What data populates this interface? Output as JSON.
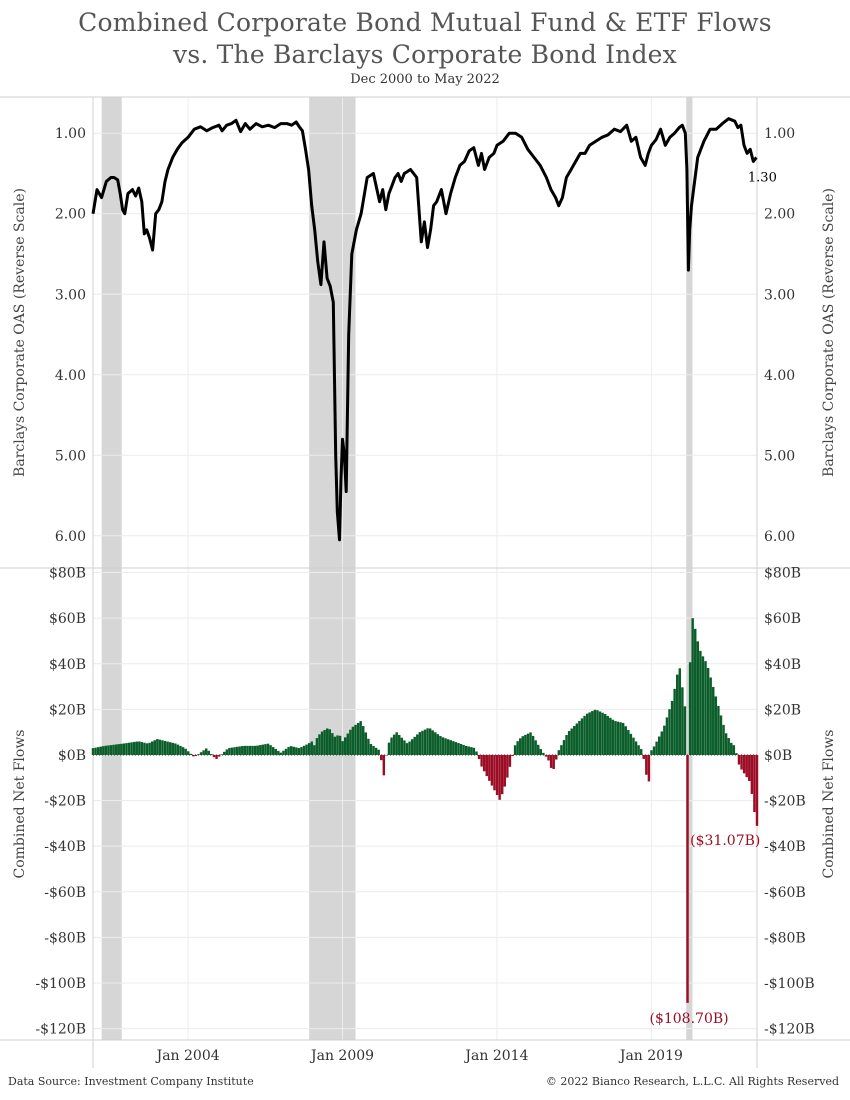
{
  "title_line1": "Combined Corporate Bond Mutual Fund & ETF Flows",
  "title_line2": "vs. The Barclays Corporate Bond Index",
  "subtitle": "Dec 2000 to May 2022",
  "footer": {
    "source": "Data Source: Investment Company Institute",
    "copyright": "© 2022 Bianco Research, L.L.C. All Rights Reserved"
  },
  "colors": {
    "line": "#000000",
    "positive_bar": "#0b5e2a",
    "negative_bar": "#9b0d24",
    "recession_band": "#d6d6d6",
    "grid": "#ececec"
  },
  "chart_data": [
    {
      "type": "line",
      "ylabel": "Barclays Corporate OAS (Reverse Scale)",
      "y_reversed": true,
      "ylim": [
        0.55,
        6.4
      ],
      "yticks": [
        1,
        2,
        3,
        4,
        5,
        6
      ],
      "ytick_labels": [
        "1.00",
        "2.00",
        "3.00",
        "4.00",
        "5.00",
        "6.00"
      ],
      "xlim": [
        2000.92,
        2022.42
      ],
      "xticks": [
        2004.0,
        2009.0,
        2014.0,
        2019.0
      ],
      "xtick_labels": [
        "Jan 2004",
        "Jan 2009",
        "Jan 2014",
        "Jan 2019"
      ],
      "recessions": [
        [
          2001.2,
          2001.85
        ],
        [
          2007.92,
          2009.42
        ],
        [
          2020.13,
          2020.33
        ]
      ],
      "last_value_label": "1.30",
      "series": [
        {
          "x": [
            2000.92,
            2001.05,
            2001.2,
            2001.35,
            2001.5,
            2001.6,
            2001.72,
            2001.8,
            2001.88,
            2001.95,
            2002.05,
            2002.2,
            2002.3,
            2002.4,
            2002.5,
            2002.58,
            2002.66,
            2002.75,
            2002.85,
            2002.95,
            2003.05,
            2003.15,
            2003.25,
            2003.35,
            2003.5,
            2003.65,
            2003.8,
            2004.0,
            2004.2,
            2004.4,
            2004.6,
            2004.8,
            2005.0,
            2005.1,
            2005.25,
            2005.4,
            2005.55,
            2005.7,
            2005.85,
            2006.0,
            2006.2,
            2006.4,
            2006.6,
            2006.8,
            2007.0,
            2007.2,
            2007.35,
            2007.5,
            2007.6,
            2007.7,
            2007.8,
            2007.9,
            2008.0,
            2008.1,
            2008.2,
            2008.3,
            2008.4,
            2008.5,
            2008.6,
            2008.7,
            2008.78,
            2008.83,
            2008.9,
            2008.95,
            2009.0,
            2009.06,
            2009.12,
            2009.2,
            2009.3,
            2009.45,
            2009.6,
            2009.8,
            2010.0,
            2010.2,
            2010.3,
            2010.4,
            2010.5,
            2010.6,
            2010.7,
            2010.8,
            2010.9,
            2011.0,
            2011.2,
            2011.4,
            2011.55,
            2011.65,
            2011.75,
            2011.85,
            2011.95,
            2012.05,
            2012.2,
            2012.35,
            2012.5,
            2012.65,
            2012.8,
            2012.95,
            2013.1,
            2013.25,
            2013.4,
            2013.5,
            2013.6,
            2013.75,
            2013.9,
            2014.0,
            2014.2,
            2014.4,
            2014.6,
            2014.8,
            2015.0,
            2015.2,
            2015.4,
            2015.6,
            2015.75,
            2015.9,
            2016.0,
            2016.12,
            2016.25,
            2016.4,
            2016.55,
            2016.7,
            2016.85,
            2017.0,
            2017.2,
            2017.4,
            2017.6,
            2017.8,
            2018.0,
            2018.2,
            2018.35,
            2018.5,
            2018.65,
            2018.8,
            2018.9,
            2019.0,
            2019.15,
            2019.3,
            2019.45,
            2019.6,
            2019.75,
            2019.9,
            2020.0,
            2020.1,
            2020.15,
            2020.2,
            2020.24,
            2020.3,
            2020.4,
            2020.5,
            2020.7,
            2020.9,
            2021.1,
            2021.3,
            2021.5,
            2021.7,
            2021.8,
            2021.9,
            2022.0,
            2022.1,
            2022.2,
            2022.3,
            2022.4
          ],
          "y": [
            2.0,
            1.7,
            1.8,
            1.6,
            1.55,
            1.55,
            1.58,
            1.75,
            1.95,
            2.0,
            1.75,
            1.7,
            1.78,
            1.68,
            1.85,
            2.25,
            2.2,
            2.3,
            2.45,
            2.0,
            1.95,
            1.85,
            1.6,
            1.45,
            1.3,
            1.2,
            1.12,
            1.05,
            0.95,
            0.92,
            0.97,
            0.93,
            0.9,
            0.97,
            0.9,
            0.88,
            0.84,
            0.98,
            0.88,
            0.95,
            0.88,
            0.92,
            0.9,
            0.93,
            0.88,
            0.88,
            0.9,
            0.86,
            0.92,
            0.97,
            1.2,
            1.45,
            1.9,
            2.2,
            2.6,
            2.88,
            2.35,
            2.8,
            2.9,
            3.1,
            5.0,
            5.7,
            6.05,
            5.3,
            4.8,
            5.0,
            5.45,
            3.5,
            2.5,
            2.2,
            2.0,
            1.55,
            1.5,
            1.85,
            1.7,
            1.95,
            1.75,
            1.65,
            1.55,
            1.5,
            1.6,
            1.5,
            1.45,
            1.55,
            2.35,
            2.1,
            2.42,
            2.2,
            1.9,
            1.85,
            1.7,
            2.0,
            1.75,
            1.55,
            1.4,
            1.35,
            1.22,
            1.18,
            1.4,
            1.25,
            1.45,
            1.3,
            1.25,
            1.15,
            1.1,
            1.0,
            1.0,
            1.05,
            1.2,
            1.3,
            1.4,
            1.55,
            1.7,
            1.8,
            1.9,
            1.8,
            1.55,
            1.45,
            1.35,
            1.25,
            1.25,
            1.15,
            1.1,
            1.05,
            1.02,
            0.95,
            0.98,
            0.9,
            1.1,
            1.05,
            1.3,
            1.4,
            1.25,
            1.15,
            1.08,
            0.95,
            1.15,
            1.05,
            1.0,
            0.93,
            0.9,
            1.0,
            1.45,
            2.7,
            2.2,
            1.9,
            1.6,
            1.3,
            1.1,
            0.95,
            0.95,
            0.88,
            0.82,
            0.85,
            0.93,
            0.9,
            1.15,
            1.25,
            1.2,
            1.35,
            1.3
          ]
        }
      ]
    },
    {
      "type": "bar",
      "ylabel": "Combined Net Flows",
      "ylim": [
        -125,
        82
      ],
      "yticks": [
        80,
        60,
        40,
        20,
        0,
        -20,
        -40,
        -60,
        -80,
        -100,
        -120
      ],
      "ytick_labels": [
        "$80B",
        "$60B",
        "$40B",
        "$20B",
        "$0B",
        "-$20B",
        "-$40B",
        "-$60B",
        "-$80B",
        "-$100B",
        "-$120B"
      ],
      "value_unit": "billions USD",
      "annotations": [
        {
          "x": 2020.22,
          "y": -108.7,
          "text": "($108.70B)"
        },
        {
          "x": 2022.4,
          "y": -31.07,
          "text": "($31.07B)"
        }
      ],
      "keypoints_x": [
        2000.92,
        2001.3,
        2001.9,
        2002.4,
        2002.7,
        2003.0,
        2003.3,
        2003.6,
        2003.9,
        2004.2,
        2004.6,
        2004.9,
        2005.3,
        2005.8,
        2006.2,
        2006.6,
        2007.0,
        2007.3,
        2007.6,
        2007.9,
        2008.0,
        2008.08,
        2008.15,
        2008.3,
        2008.55,
        2008.75,
        2008.9,
        2009.0,
        2009.3,
        2009.6,
        2009.9,
        2010.2,
        2010.35,
        2010.45,
        2010.6,
        2010.75,
        2011.1,
        2011.5,
        2011.8,
        2012.2,
        2012.6,
        2013.0,
        2013.3,
        2013.5,
        2013.7,
        2013.9,
        2014.1,
        2014.3,
        2014.6,
        2014.8,
        2015.1,
        2015.4,
        2015.7,
        2015.8,
        2016.0,
        2016.3,
        2016.6,
        2016.9,
        2017.2,
        2017.5,
        2017.8,
        2018.1,
        2018.4,
        2018.7,
        2018.8,
        2018.9,
        2019.0,
        2019.1,
        2019.4,
        2019.7,
        2019.9,
        2020.1,
        2020.2,
        2020.25,
        2020.35,
        2020.5,
        2020.6,
        2020.8,
        2021.0,
        2021.2,
        2021.4,
        2021.6,
        2021.7,
        2021.85,
        2022.0,
        2022.2,
        2022.4
      ],
      "keypoints_y": [
        3,
        4,
        5,
        6,
        5,
        7,
        6,
        5,
        3,
        -1,
        3,
        -2,
        3,
        4,
        4,
        5,
        1,
        4,
        3,
        5,
        6,
        4,
        7,
        10,
        12,
        8,
        9,
        6,
        12,
        15,
        5,
        2,
        -10,
        4,
        8,
        10,
        5,
        10,
        12,
        8,
        6,
        4,
        3,
        -5,
        -10,
        -15,
        -20,
        -12,
        5,
        8,
        10,
        3,
        -3,
        -8,
        2,
        10,
        14,
        18,
        20,
        18,
        15,
        14,
        8,
        2,
        -5,
        -15,
        2,
        4,
        12,
        25,
        40,
        20,
        -108.7,
        40,
        60,
        50,
        45,
        40,
        30,
        20,
        10,
        5,
        4,
        -5,
        -8,
        -12,
        -31.07
      ]
    }
  ]
}
